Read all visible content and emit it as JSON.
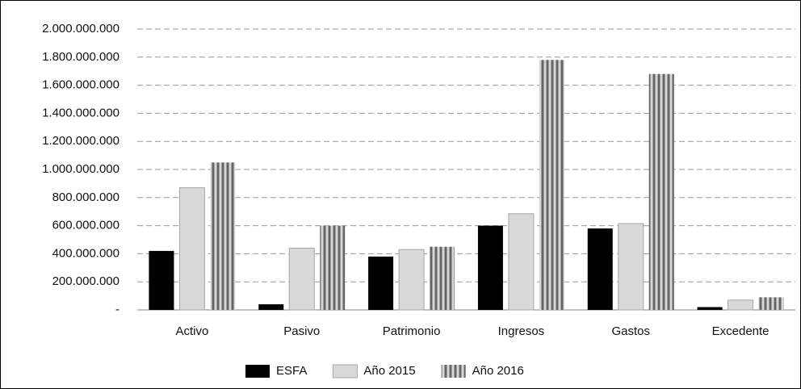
{
  "chart_data": {
    "type": "bar",
    "categories": [
      "Activo",
      "Pasivo",
      "Patrimonio",
      "Ingresos",
      "Gastos",
      "Excedente"
    ],
    "series": [
      {
        "name": "ESFA",
        "color": "#000000",
        "values": [
          420000000,
          40000000,
          380000000,
          600000000,
          580000000,
          20000000
        ]
      },
      {
        "name": "Año 2015",
        "color": "#d9d9d9",
        "values": [
          870000000,
          440000000,
          430000000,
          685000000,
          615000000,
          70000000
        ]
      },
      {
        "name": "Año 2016",
        "color": "#7f7f7f",
        "pattern": "vertical-stripes",
        "values": [
          1050000000,
          600000000,
          450000000,
          1780000000,
          1680000000,
          90000000
        ]
      }
    ],
    "ylim": [
      0,
      2000000000
    ],
    "yticks": [
      {
        "value": 0,
        "label": "-"
      },
      {
        "value": 200000000,
        "label": "200.000.000"
      },
      {
        "value": 400000000,
        "label": "400.000.000"
      },
      {
        "value": 600000000,
        "label": "600.000.000"
      },
      {
        "value": 800000000,
        "label": "800.000.000"
      },
      {
        "value": 1000000000,
        "label": "1.000.000.000"
      },
      {
        "value": 1200000000,
        "label": "1.200.000.000"
      },
      {
        "value": 1400000000,
        "label": "1.400.000.000"
      },
      {
        "value": 1600000000,
        "label": "1.600.000.000"
      },
      {
        "value": 1800000000,
        "label": "1.800.000.000"
      },
      {
        "value": 2000000000,
        "label": "2.000.000.000"
      }
    ],
    "grid": true,
    "legend": "bottom"
  }
}
